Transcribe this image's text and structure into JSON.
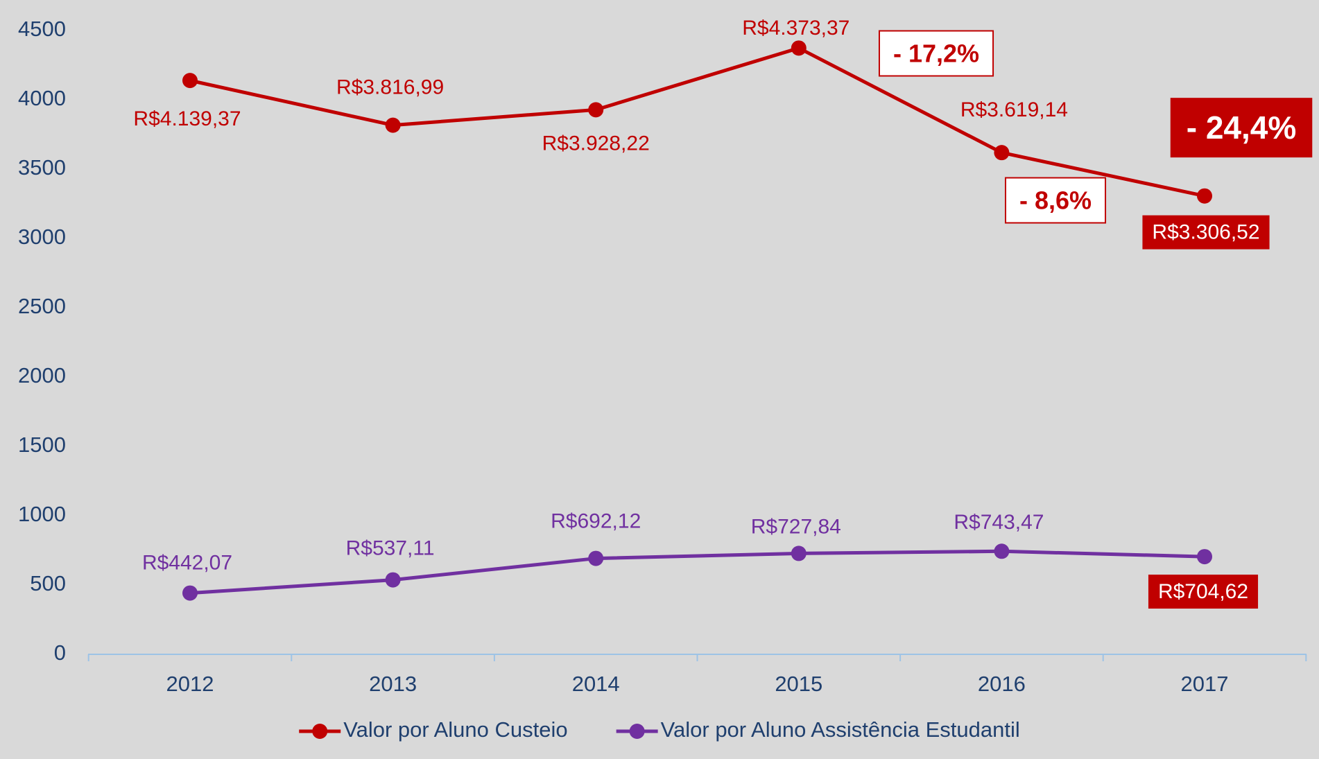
{
  "chart_data": {
    "type": "line",
    "categories": [
      "2012",
      "2013",
      "2014",
      "2015",
      "2016",
      "2017"
    ],
    "series": [
      {
        "name": "Valor por Aluno Custeio",
        "color": "#c00000",
        "values": [
          4139.37,
          3816.99,
          3928.22,
          4373.37,
          3619.14,
          3306.52
        ],
        "value_labels": [
          "R$4.139,37",
          "R$3.816,99",
          "R$3.928,22",
          "R$4.373,37",
          "R$3.619,14",
          "R$3.306,52"
        ]
      },
      {
        "name": "Valor por Aluno Assistência Estudantil",
        "color": "#7030a0",
        "values": [
          442.07,
          537.11,
          692.12,
          727.84,
          743.47,
          704.62
        ],
        "value_labels": [
          "R$442,07",
          "R$537,11",
          "R$692,12",
          "R$727,84",
          "R$743,47",
          "R$704,62"
        ]
      }
    ],
    "ylim": [
      0,
      4500
    ],
    "yticks": [
      0,
      500,
      1000,
      1500,
      2000,
      2500,
      3000,
      3500,
      4000,
      4500
    ],
    "grid": false,
    "legend": "bottom",
    "annotations": [
      "- 17,2%",
      "- 8,6%",
      "- 24,4%"
    ]
  }
}
